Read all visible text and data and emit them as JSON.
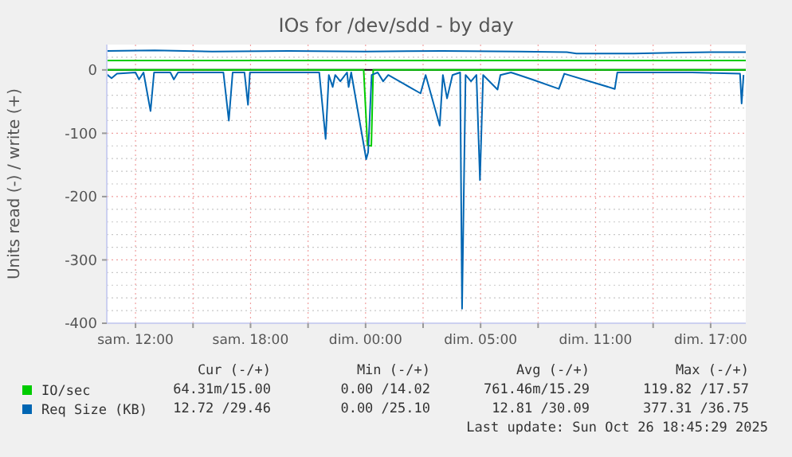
{
  "chart_data": {
    "type": "line",
    "title": "IOs for /dev/sdd - by day",
    "ylabel": "Units read (-) / write (+)",
    "xlim": [
      "2025-10-25T08:30",
      "2025-10-26T17:50"
    ],
    "xticks": [
      {
        "value": "2025-10-25T10:00",
        "label": "sam. 12:00"
      },
      {
        "value": "2025-10-25T13:00",
        "label": null
      },
      {
        "value": "2025-10-25T16:00",
        "label": "sam. 18:00"
      },
      {
        "value": "2025-10-25T19:00",
        "label": null
      },
      {
        "value": "2025-10-25T22:00",
        "label": "dim. 00:00"
      },
      {
        "value": "2025-10-26T01:00",
        "label": null
      },
      {
        "value": "2025-10-26T04:00",
        "label": "dim. 05:00"
      },
      {
        "value": "2025-10-26T07:00",
        "label": null
      },
      {
        "value": "2025-10-26T10:00",
        "label": "dim. 11:00"
      },
      {
        "value": "2025-10-26T13:00",
        "label": null
      },
      {
        "value": "2025-10-26T16:00",
        "label": "dim. 17:00"
      }
    ],
    "ylim": [
      -400,
      40
    ],
    "yticks": [
      -400,
      {
        "value": -380,
        "label": null
      },
      {
        "value": -360,
        "label": null
      },
      {
        "value": -340,
        "label": null
      },
      {
        "value": -320,
        "label": null
      },
      -300,
      {
        "value": -280,
        "label": null
      },
      {
        "value": -260,
        "label": null
      },
      {
        "value": -240,
        "label": null
      },
      {
        "value": -220,
        "label": null
      },
      -200,
      {
        "value": -180,
        "label": null
      },
      {
        "value": -160,
        "label": null
      },
      {
        "value": -140,
        "label": null
      },
      {
        "value": -120,
        "label": null
      },
      -100,
      {
        "value": -80,
        "label": null
      },
      {
        "value": -60,
        "label": null
      },
      {
        "value": -40,
        "label": null
      },
      {
        "value": -20,
        "label": null
      },
      0,
      {
        "value": 20,
        "label": null
      }
    ],
    "grid": true,
    "legend": "bottom",
    "line_style": "solid",
    "marker": "none",
    "ref_lines": [
      {
        "axis": "y",
        "value": 0,
        "color": "#000000"
      }
    ],
    "series": [
      {
        "name": "IO/sec",
        "color": "#00cc00",
        "x": [
          "2025-10-25T08:30",
          "2025-10-25T18:00",
          "2025-10-26T04:00",
          "2025-10-26T17:50"
        ],
        "values": [
          15,
          15,
          15,
          15
        ]
      },
      {
        "color": "#00cc00",
        "x": [
          "2025-10-25T08:30",
          "2025-10-25T21:54",
          "2025-10-25T22:00",
          "2025-10-25T22:06",
          "2025-10-25T22:18",
          "2025-10-25T22:24",
          "2025-10-26T17:50"
        ],
        "values": [
          0,
          0,
          -60,
          -119,
          -120,
          0,
          0
        ]
      },
      {
        "name": "Req Size (KB)",
        "color": "#0066b3",
        "x": [
          "2025-10-25T08:30",
          "2025-10-25T11:00",
          "2025-10-25T14:00",
          "2025-10-25T18:00",
          "2025-10-25T22:00",
          "2025-10-26T02:00",
          "2025-10-26T06:00",
          "2025-10-26T08:30",
          "2025-10-26T09:00",
          "2025-10-26T12:00",
          "2025-10-26T14:00",
          "2025-10-26T16:00",
          "2025-10-26T17:50"
        ],
        "values": [
          30,
          31,
          29,
          30,
          29,
          30,
          29,
          28,
          26,
          26,
          27,
          28,
          28
        ]
      },
      {
        "color": "#0066b3",
        "x": [
          "2025-10-25T08:30",
          "2025-10-25T08:45",
          "2025-10-25T09:02",
          "2025-10-25T10:00",
          "2025-10-25T10:11",
          "2025-10-25T10:25",
          "2025-10-25T10:47",
          "2025-10-25T10:58",
          "2025-10-25T11:49",
          "2025-10-25T12:00",
          "2025-10-25T12:13",
          "2025-10-25T14:35",
          "2025-10-25T14:52",
          "2025-10-25T15:04",
          "2025-10-25T15:41",
          "2025-10-25T15:52",
          "2025-10-25T15:58",
          "2025-10-25T19:35",
          "2025-10-25T19:55",
          "2025-10-25T20:05",
          "2025-10-25T20:17",
          "2025-10-25T20:25",
          "2025-10-25T20:41",
          "2025-10-25T21:02",
          "2025-10-25T21:07",
          "2025-10-25T21:15",
          "2025-10-25T22:02",
          "2025-10-25T22:08",
          "2025-10-25T22:19",
          "2025-10-25T22:38",
          "2025-10-25T22:55",
          "2025-10-25T23:11",
          "2025-10-26T00:52",
          "2025-10-26T01:08",
          "2025-10-26T01:52",
          "2025-10-26T02:02",
          "2025-10-26T02:15",
          "2025-10-26T02:32",
          "2025-10-26T02:56",
          "2025-10-26T03:02",
          "2025-10-26T03:13",
          "2025-10-26T03:30",
          "2025-10-26T03:47",
          "2025-10-26T03:58",
          "2025-10-26T04:08",
          "2025-10-26T04:53",
          "2025-10-26T05:02",
          "2025-10-26T05:35",
          "2025-10-26T06:00",
          "2025-10-26T06:41",
          "2025-10-26T08:05",
          "2025-10-26T08:22",
          "2025-10-26T11:00",
          "2025-10-26T11:08",
          "2025-10-26T15:02",
          "2025-10-26T17:32",
          "2025-10-26T17:37",
          "2025-10-26T17:43"
        ],
        "values": [
          -7,
          -13,
          -6,
          -4,
          -15,
          -4,
          -65,
          -4,
          -4,
          -15,
          -4,
          -4,
          -80,
          -4,
          -4,
          -55,
          -4,
          -4,
          -109,
          -8,
          -27,
          -8,
          -18,
          -4,
          -27,
          -4,
          -141,
          -130,
          -8,
          -4,
          -18,
          -8,
          -37,
          -8,
          -88,
          -8,
          -45,
          -8,
          -4,
          -377,
          -8,
          -18,
          -8,
          -174,
          -8,
          -31,
          -8,
          -4,
          -8,
          -15,
          -30,
          -6,
          -30,
          -4,
          -4,
          -6,
          -53,
          -8
        ]
      }
    ],
    "annotations": [
      "Cur (-/+)",
      "Min (-/+)",
      "Avg (-/+)",
      "Max (-/+)",
      "64.31m/15.00",
      "0.00 /14.02",
      "761.46m/15.29",
      "119.82 /17.57",
      "12.72 /29.46",
      "0.00 /25.10",
      "12.81 /30.09",
      "377.31 /36.75",
      "Last update: Sun Oct 26 18:45:29 2025"
    ]
  }
}
